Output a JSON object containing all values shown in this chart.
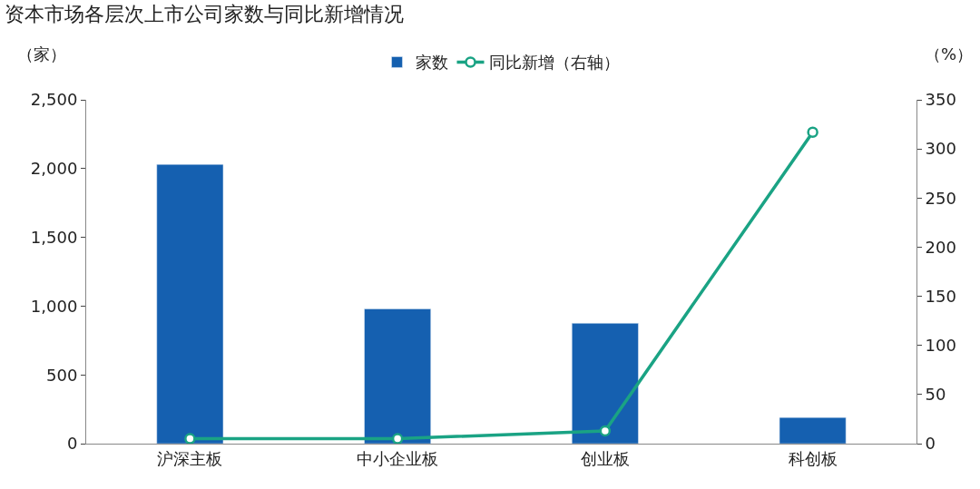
{
  "chart_data": {
    "type": "bar",
    "title": "资本市场各层次上市公司家数与同比新增情况",
    "ylabel": "（家）",
    "y2label": "（%）",
    "categories": [
      "沪深主板",
      "中小企业板",
      "创业板",
      "科创板"
    ],
    "series": [
      {
        "name": "家数",
        "color": "#1560b0",
        "values": [
          2030,
          980,
          875,
          190
        ]
      },
      {
        "name": "同比新增（右轴）",
        "type": "line",
        "axis": "y2",
        "color": "#1aa384",
        "marker": "circle",
        "values": [
          5,
          5,
          13,
          317
        ]
      }
    ],
    "ylim": [
      0,
      2500
    ],
    "yticks": [
      {
        "value": 0,
        "label": "0"
      },
      {
        "value": 500,
        "label": "500"
      },
      {
        "value": 1000,
        "label": "1,000"
      },
      {
        "value": 1500,
        "label": "1,500"
      },
      {
        "value": 2000,
        "label": "2,000"
      },
      {
        "value": 2500,
        "label": "2,500"
      }
    ],
    "y2lim": [
      0,
      350
    ],
    "y2ticks": [
      0,
      50,
      100,
      150,
      200,
      250,
      300,
      350
    ],
    "legend": "top"
  }
}
